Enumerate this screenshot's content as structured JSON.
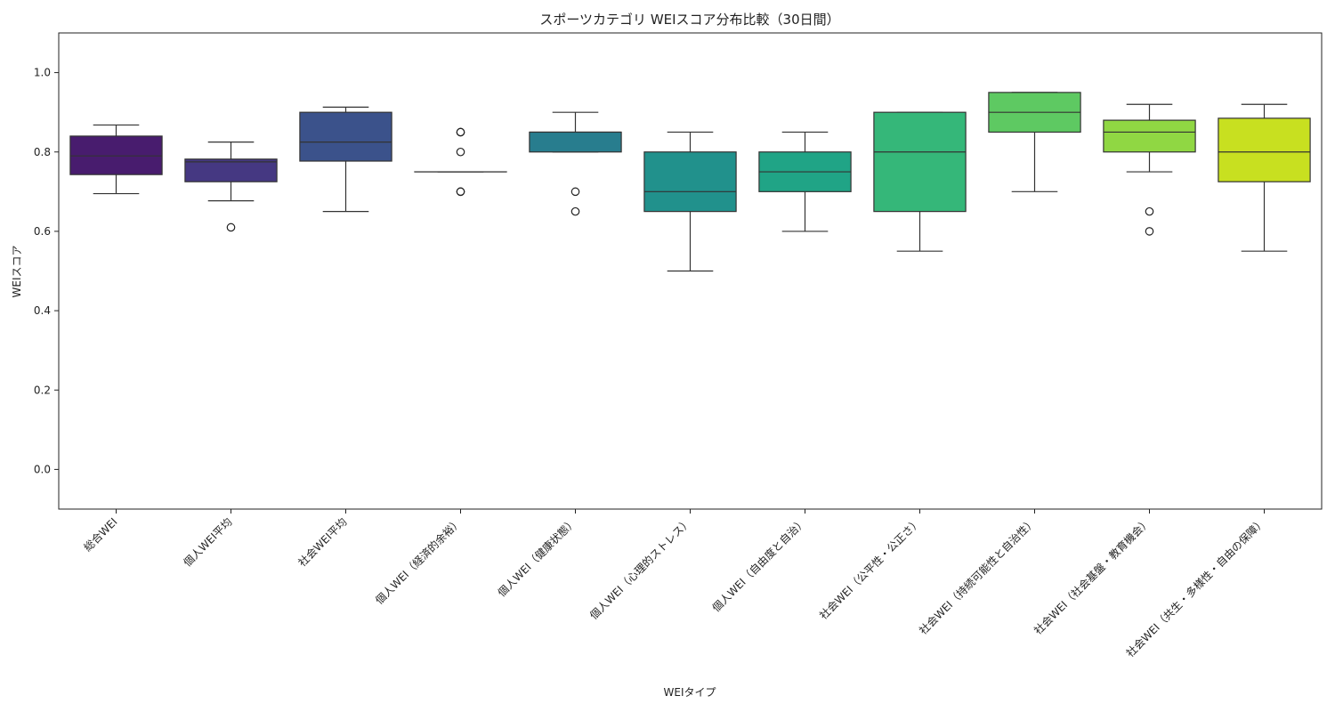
{
  "chart_data": {
    "type": "box",
    "title": "スポーツカテゴリ WEIスコア分布比較（30日間）",
    "xlabel": "WEIタイプ",
    "ylabel": "WEIスコア",
    "ylim": [
      -0.1,
      1.1
    ],
    "yticks": [
      0.0,
      0.2,
      0.4,
      0.6,
      0.8,
      1.0
    ],
    "ytick_labels": [
      "0.0",
      "0.2",
      "0.4",
      "0.6",
      "0.8",
      "1.0"
    ],
    "grid": false,
    "categories": [
      "総合WEI",
      "個人WEI平均",
      "社会WEI平均",
      "個人WEI（経済的余裕）",
      "個人WEI（健康状態）",
      "個人WEI（心理的ストレス）",
      "個人WEI（自由度と自治）",
      "社会WEI（公平性・公正さ）",
      "社会WEI（持続可能性と自治性）",
      "社会WEI（社会基盤・教育機会）",
      "社会WEI（共生・多様性・自由の保障）"
    ],
    "colors": [
      "#481c6e",
      "#453882",
      "#3b528b",
      "#30688e",
      "#287d8e",
      "#21918c",
      "#20a486",
      "#35b779",
      "#5ec962",
      "#90d743",
      "#c8e020"
    ],
    "boxes": [
      {
        "whislo": 0.695,
        "q1": 0.743,
        "med": 0.79,
        "q3": 0.84,
        "whishi": 0.868,
        "fliers": []
      },
      {
        "whislo": 0.677,
        "q1": 0.725,
        "med": 0.775,
        "q3": 0.782,
        "whishi": 0.825,
        "fliers": [
          0.61
        ]
      },
      {
        "whislo": 0.65,
        "q1": 0.777,
        "med": 0.825,
        "q3": 0.9,
        "whishi": 0.913,
        "fliers": []
      },
      {
        "whislo": 0.75,
        "q1": 0.75,
        "med": 0.75,
        "q3": 0.75,
        "whishi": 0.75,
        "fliers": [
          0.7,
          0.7,
          0.8,
          0.85,
          0.85
        ]
      },
      {
        "whislo": 0.8,
        "q1": 0.8,
        "med": 0.85,
        "q3": 0.85,
        "whishi": 0.9,
        "fliers": [
          0.65,
          0.7
        ]
      },
      {
        "whislo": 0.5,
        "q1": 0.65,
        "med": 0.7,
        "q3": 0.8,
        "whishi": 0.85,
        "fliers": []
      },
      {
        "whislo": 0.6,
        "q1": 0.7,
        "med": 0.75,
        "q3": 0.8,
        "whishi": 0.85,
        "fliers": []
      },
      {
        "whislo": 0.55,
        "q1": 0.65,
        "med": 0.8,
        "q3": 0.9,
        "whishi": 0.9,
        "fliers": []
      },
      {
        "whislo": 0.7,
        "q1": 0.85,
        "med": 0.9,
        "q3": 0.95,
        "whishi": 0.95,
        "fliers": []
      },
      {
        "whislo": 0.75,
        "q1": 0.8,
        "med": 0.85,
        "q3": 0.88,
        "whishi": 0.92,
        "fliers": [
          0.6,
          0.65
        ]
      },
      {
        "whislo": 0.55,
        "q1": 0.725,
        "med": 0.8,
        "q3": 0.885,
        "whishi": 0.92,
        "fliers": []
      }
    ]
  }
}
